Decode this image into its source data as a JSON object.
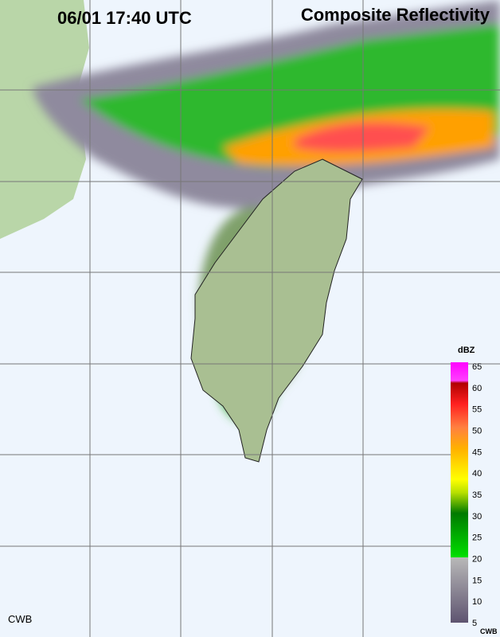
{
  "header": {
    "time": "06/01 17:40 UTC",
    "title": "Composite Reflectivity"
  },
  "legend": {
    "unit": "dBZ",
    "ticks": [
      65,
      60,
      55,
      50,
      45,
      40,
      35,
      30,
      25,
      20,
      15,
      10,
      5
    ],
    "credit": "CWB"
  },
  "footer": {
    "credit": "CWB"
  }
}
